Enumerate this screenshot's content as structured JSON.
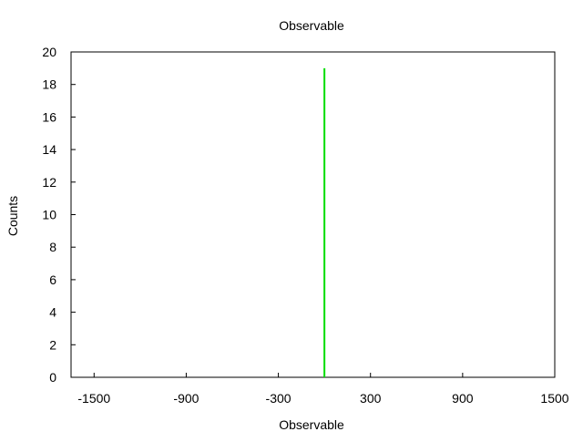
{
  "chart_data": {
    "type": "bar",
    "title": "Observable",
    "xlabel": "Observable",
    "ylabel": "Counts",
    "xlim": [
      -1650,
      1500
    ],
    "ylim": [
      0,
      20
    ],
    "x_ticks": [
      -1500,
      -900,
      -300,
      300,
      900,
      1500
    ],
    "y_ticks": [
      0,
      2,
      4,
      6,
      8,
      10,
      12,
      14,
      16,
      18,
      20
    ],
    "grid": false,
    "series": [
      {
        "color": "#00dd00",
        "bins": [
          {
            "x": 0,
            "value": 19
          }
        ]
      }
    ]
  }
}
